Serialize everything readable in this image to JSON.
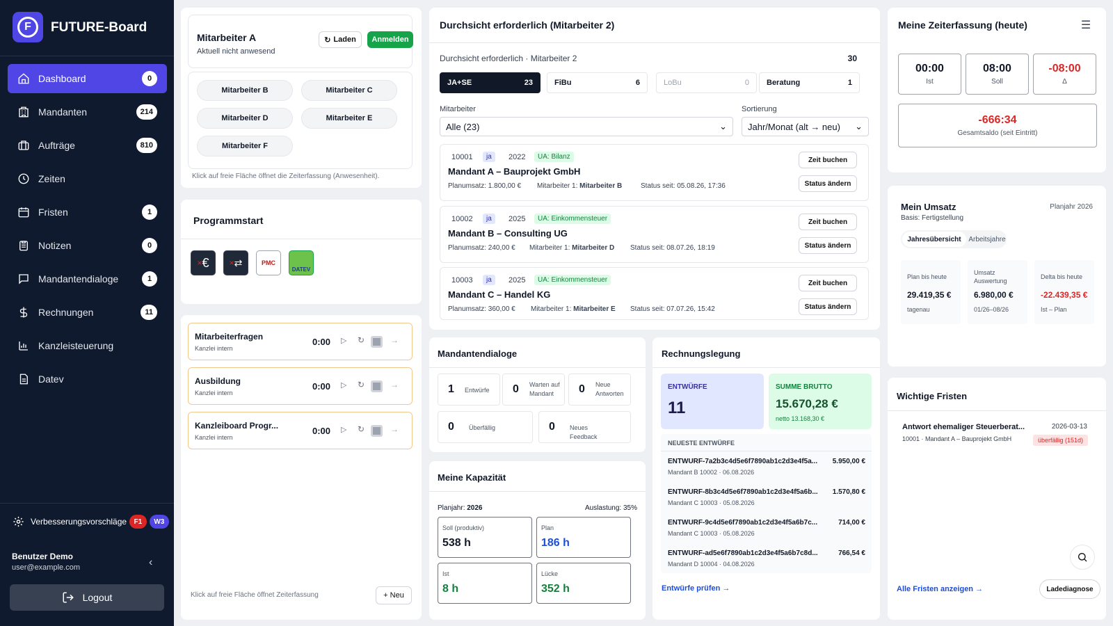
{
  "app": {
    "title": "FUTURE-Board",
    "logo_letter": "F"
  },
  "nav": [
    {
      "label": "Dashboard",
      "count": "0",
      "icon": "home-icon",
      "active": true
    },
    {
      "label": "Mandanten",
      "count": "214",
      "icon": "building-icon"
    },
    {
      "label": "Aufträge",
      "count": "810",
      "icon": "briefcase-icon"
    },
    {
      "label": "Zeiten",
      "count": "",
      "icon": "clock-icon"
    },
    {
      "label": "Fristen",
      "count": "1",
      "icon": "calendar-icon"
    },
    {
      "label": "Notizen",
      "count": "0",
      "icon": "clipboard-icon"
    },
    {
      "label": "Mandantendialoge",
      "count": "1",
      "icon": "chat-icon"
    },
    {
      "label": "Rechnungen",
      "count": "11",
      "icon": "dollar-icon"
    },
    {
      "label": "Kanzleisteuerung",
      "count": "",
      "icon": "bar-chart-icon"
    },
    {
      "label": "Datev",
      "count": "",
      "icon": "document-icon"
    }
  ],
  "feedback": {
    "label": "Verbesserungsvorschläge",
    "badge1": "F1",
    "badge2": "W3"
  },
  "user": {
    "name": "Benutzer Demo",
    "email": "user@example.com",
    "logout": "Logout"
  },
  "presence": {
    "title": "Mitarbeiter A",
    "subtitle": "Aktuell nicht anwesend",
    "load_btn": "Laden",
    "login_btn": "Anmelden",
    "employees": [
      "Mitarbeiter B",
      "Mitarbeiter C",
      "Mitarbeiter D",
      "Mitarbeiter E",
      "Mitarbeiter F"
    ],
    "hint": "Klick auf freie Fläche öffnet die Zeiterfassung (Anwesenheit)."
  },
  "programs": {
    "title": "Programmstart",
    "icons": [
      "excel-euro-icon",
      "excel-transfer-icon",
      "pmc-icon",
      "datev-icon"
    ],
    "datev_text": "DATEV",
    "pmc_text": "PMC"
  },
  "timers": {
    "items": [
      {
        "title": "Mitarbeiterfragen",
        "sub": "Kanzlei intern",
        "time": "0:00"
      },
      {
        "title": "Ausbildung",
        "sub": "Kanzlei intern",
        "time": "0:00"
      },
      {
        "title": "Kanzleiboard Progr...",
        "sub": "Kanzlei intern",
        "time": "0:00"
      }
    ],
    "hint": "Klick auf freie Fläche öffnet Zeiterfassung",
    "new_btn": "+ Neu"
  },
  "review": {
    "title": "Durchsicht erforderlich (Mitarbeiter 2)",
    "subtitle": "Durchsicht erforderlich · Mitarbeiter 2",
    "total": "30",
    "tabs": [
      {
        "label": "JA+SE",
        "count": "23"
      },
      {
        "label": "FiBu",
        "count": "6"
      },
      {
        "label": "LoBu",
        "count": "0"
      },
      {
        "label": "Beratung",
        "count": "1"
      }
    ],
    "filter_label": "Mitarbeiter",
    "filter_value": "Alle (23)",
    "sort_label": "Sortierung",
    "sort_value": "Jahr/Monat (alt → neu)",
    "book_btn": "Zeit buchen",
    "status_btn": "Status ändern",
    "entries": [
      {
        "nr": "10001",
        "ja": "ja",
        "year": "2022",
        "ua": "UA: Bilanz",
        "name": "Mandant A – Bauprojekt GmbH",
        "plan": "Planumsatz: 1.800,00 €",
        "ma_label": "Mitarbeiter 1:",
        "ma": "Mitarbeiter B",
        "since": "Status seit: 05.08.26, 17:36"
      },
      {
        "nr": "10002",
        "ja": "ja",
        "year": "2025",
        "ua": "UA: Einkommensteuer",
        "name": "Mandant B – Consulting UG",
        "plan": "Planumsatz: 240,00 €",
        "ma_label": "Mitarbeiter 1:",
        "ma": "Mitarbeiter D",
        "since": "Status seit: 08.07.26, 18:19"
      },
      {
        "nr": "10003",
        "ja": "ja",
        "year": "2025",
        "ua": "UA: Einkommensteuer",
        "name": "Mandant C – Handel KG",
        "plan": "Planumsatz: 360,00 €",
        "ma_label": "Mitarbeiter 1:",
        "ma": "Mitarbeiter E",
        "since": "Status seit: 07.07.26, 15:42"
      }
    ]
  },
  "dialoge": {
    "title": "Mandantendialoge",
    "stats": [
      {
        "n": "1",
        "l": "Entwürfe"
      },
      {
        "n": "0",
        "l": "Warten auf Mandant"
      },
      {
        "n": "0",
        "l": "Neue Antworten"
      },
      {
        "n": "0",
        "l": "Überfällig"
      },
      {
        "n": "0",
        "l": "Neues Feedback"
      }
    ]
  },
  "capacity": {
    "title": "Meine Kapazität",
    "year_label": "Planjahr:",
    "year": "2026",
    "util": "Auslastung: 35%",
    "boxes": [
      {
        "l": "Soll (produktiv)",
        "v": "538 h",
        "color": "#111827"
      },
      {
        "l": "Plan",
        "v": "186 h",
        "color": "#1d4ed8"
      },
      {
        "l": "Ist",
        "v": "8 h",
        "color": "#15803d"
      },
      {
        "l": "Lücke",
        "v": "352 h",
        "color": "#15803d"
      }
    ]
  },
  "billing": {
    "title": "Rechnungslegung",
    "drafts_label": "ENTWÜRFE",
    "drafts": "11",
    "sum_label": "SUMME BRUTTO",
    "sum": "15.670,28 €",
    "net": "netto 13.168,30 €",
    "latest_label": "NEUESTE ENTWÜRFE",
    "items": [
      {
        "id": "ENTWURF-7a2b3c4d5e6f7890ab1c2d3e4f5a...",
        "amount": "5.950,00 €",
        "sub": "Mandant B 10002 · 06.08.2026"
      },
      {
        "id": "ENTWURF-8b3c4d5e6f7890ab1c2d3e4f5a6b...",
        "amount": "1.570,80 €",
        "sub": "Mandant C 10003 · 05.08.2026"
      },
      {
        "id": "ENTWURF-9c4d5e6f7890ab1c2d3e4f5a6b7c...",
        "amount": "714,00 €",
        "sub": "Mandant C 10003 · 05.08.2026"
      },
      {
        "id": "ENTWURF-ad5e6f7890ab1c2d3e4f5a6b7c8d...",
        "amount": "766,54 €",
        "sub": "Mandant D 10004 · 04.08.2026"
      }
    ],
    "link": "Entwürfe prüfen →"
  },
  "time": {
    "title": "Meine Zeiterfassung (heute)",
    "ist": "00:00",
    "ist_l": "Ist",
    "soll": "08:00",
    "soll_l": "Soll",
    "delta": "-08:00",
    "delta_l": "Δ",
    "total": "-666:34",
    "total_l": "Gesamtsaldo (seit Eintritt)"
  },
  "revenue": {
    "title": "Mein Umsatz",
    "year": "Planjahr 2026",
    "sub": "Basis: Fertigstellung",
    "tab1": "Jahresübersicht",
    "tab2": "Arbeitsjahre",
    "stats": [
      {
        "l": "Plan bis heute",
        "v": "29.419,35 €",
        "s": "tagenau",
        "c": "#111827"
      },
      {
        "l": "Umsatz Auswertung",
        "v": "6.980,00 €",
        "s": "01/26–08/26",
        "c": "#111827"
      },
      {
        "l": "Delta bis heute",
        "v": "-22.439,35 €",
        "s": "Ist – Plan",
        "c": "#dc2626"
      }
    ]
  },
  "deadlines": {
    "title": "Wichtige Fristen",
    "item_title": "Antwort ehemaliger Steuerberat...",
    "item_date": "2026-03-13",
    "item_sub": "10001 · Mandant A – Bauprojekt GmbH",
    "item_badge": "überfällig (151d)",
    "link": "Alle Fristen anzeigen →",
    "diag_btn": "Ladediagnose"
  },
  "colors": {
    "accent": "#4f46e5",
    "sidebar": "#0f1a2e",
    "danger": "#dc2626",
    "success": "#16a34a"
  }
}
